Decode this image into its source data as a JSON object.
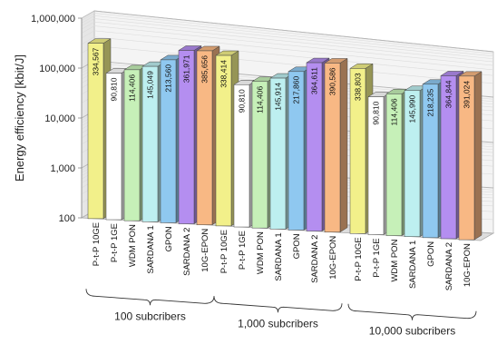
{
  "chart_data": {
    "type": "bar",
    "ylabel": "Energy efficiency [kbit/J]",
    "yscale": "log",
    "ylim": [
      100,
      1000000
    ],
    "yticks": [
      "100",
      "1,000",
      "10,000",
      "100,000",
      "1,000,000"
    ],
    "grid": true,
    "categories": [
      "P-t-P 10GE",
      "P-t-P 1GE",
      "WDM PON",
      "SARDANA 1",
      "GPON",
      "SARDANA 2",
      "10G-EPON"
    ],
    "colors": [
      "#f2f08a",
      "#ffffff",
      "#c6f0b8",
      "#bdeff0",
      "#8fc8f0",
      "#b48ef0",
      "#f8b884"
    ],
    "groups": [
      {
        "label": "100 subcribers",
        "values": [
          334567,
          90810,
          114406,
          145049,
          213560,
          361971,
          385656
        ],
        "value_labels": [
          "334,567",
          "90,810",
          "114,406",
          "145,049",
          "213,560",
          "361,971",
          "385,656"
        ]
      },
      {
        "label": "1,000 subcribers",
        "values": [
          338414,
          90810,
          114406,
          145914,
          217860,
          364611,
          390586
        ],
        "value_labels": [
          "338,414",
          "90,810",
          "114,406",
          "145,914",
          "217,860",
          "364,611",
          "390,586"
        ]
      },
      {
        "label": "10,000 subcribers",
        "values": [
          338803,
          90810,
          114406,
          145990,
          218235,
          364844,
          391024
        ],
        "value_labels": [
          "338,803",
          "90,810",
          "114,406",
          "145,990",
          "218,235",
          "364,844",
          "391,024"
        ]
      }
    ]
  }
}
